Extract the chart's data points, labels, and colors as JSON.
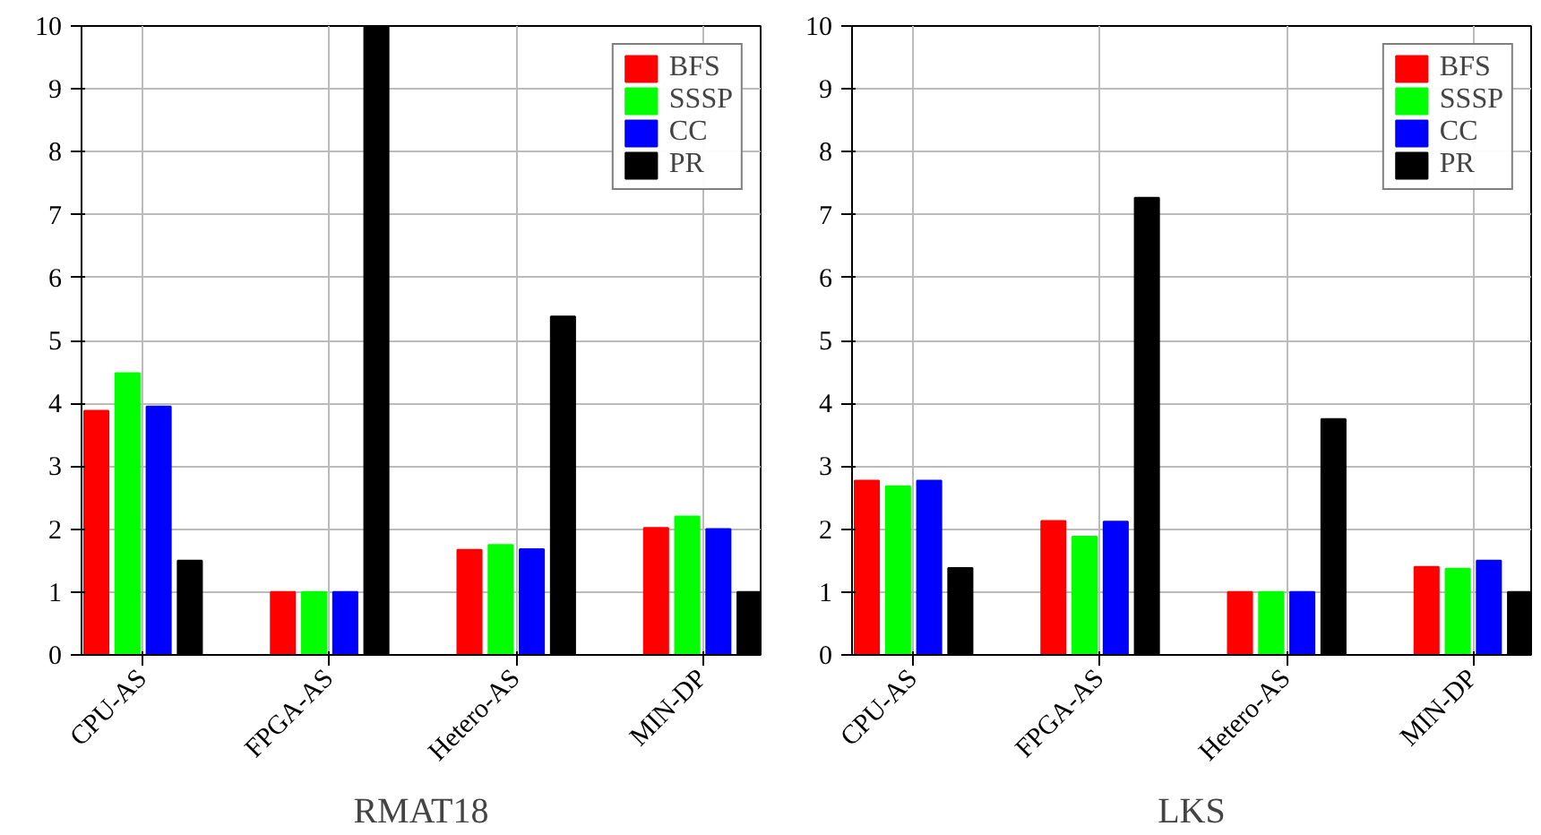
{
  "chart_data": [
    {
      "type": "bar",
      "xlabel": "RMAT18",
      "categories": [
        "CPU-AS",
        "FPGA-AS",
        "Hetero-AS",
        "MIN-DP"
      ],
      "ylim": [
        0,
        10
      ],
      "yticks": [
        0,
        1,
        2,
        3,
        4,
        5,
        6,
        7,
        8,
        9,
        10
      ],
      "grid": true,
      "legend": "top right",
      "series": [
        {
          "name": "BFS",
          "color": "#ff0000",
          "values": [
            3.88,
            1,
            1.67,
            2.02
          ]
        },
        {
          "name": "SSSP",
          "color": "#00ff00",
          "values": [
            4.48,
            1,
            1.75,
            2.2
          ]
        },
        {
          "name": "CC",
          "color": "#0000ff",
          "values": [
            3.95,
            1,
            1.68,
            2.0
          ]
        },
        {
          "name": "PR",
          "color": "#000000",
          "values": [
            1.5,
            10,
            5.38,
            1.0
          ]
        }
      ]
    },
    {
      "type": "bar",
      "xlabel": "LKS",
      "categories": [
        "CPU-AS",
        "FPGA-AS",
        "Hetero-AS",
        "MIN-DP"
      ],
      "ylim": [
        0,
        10
      ],
      "yticks": [
        0,
        1,
        2,
        3,
        4,
        5,
        6,
        7,
        8,
        9,
        10
      ],
      "grid": true,
      "legend": "top right",
      "series": [
        {
          "name": "BFS",
          "color": "#ff0000",
          "values": [
            2.77,
            2.13,
            1,
            1.4
          ]
        },
        {
          "name": "SSSP",
          "color": "#00ff00",
          "values": [
            2.68,
            1.88,
            1,
            1.37
          ]
        },
        {
          "name": "CC",
          "color": "#0000ff",
          "values": [
            2.77,
            2.12,
            1,
            1.5
          ]
        },
        {
          "name": "PR",
          "color": "#000000",
          "values": [
            1.38,
            7.27,
            3.75,
            1.0
          ]
        }
      ]
    }
  ]
}
